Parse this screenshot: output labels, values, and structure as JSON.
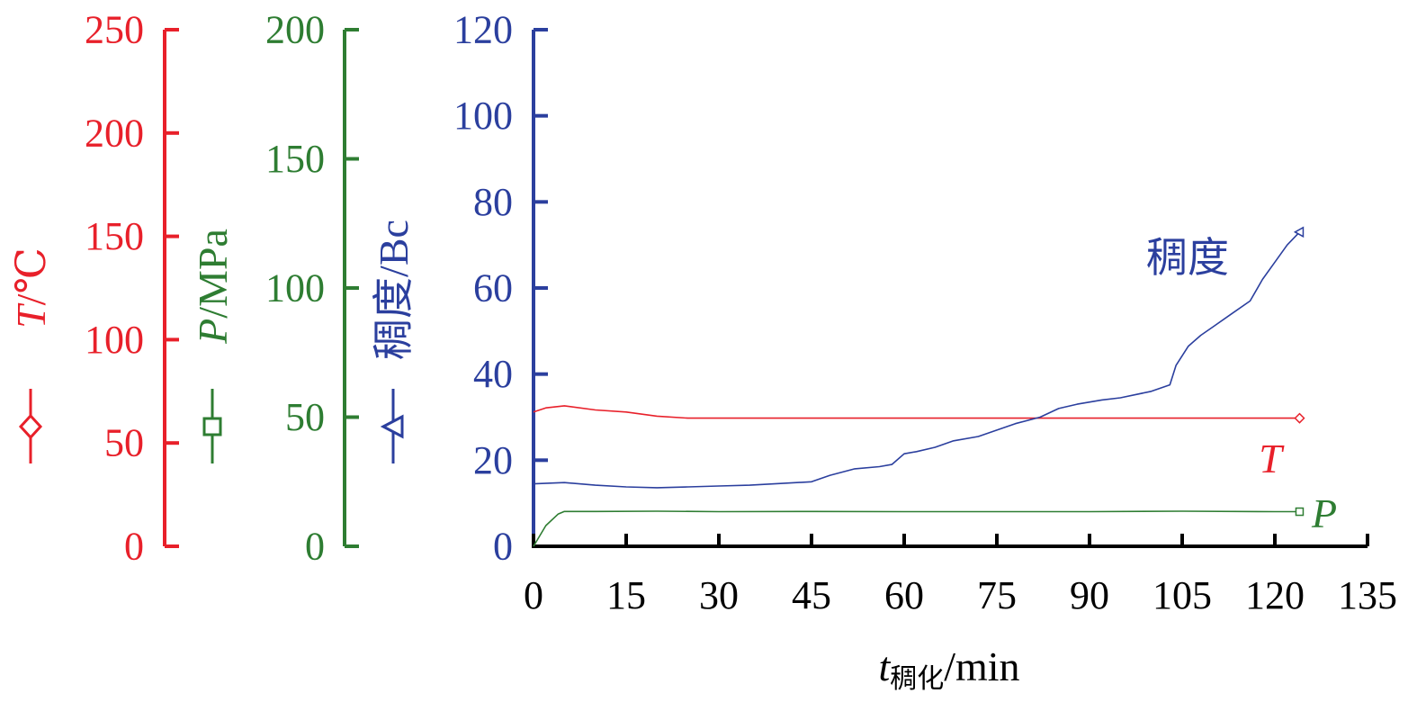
{
  "chart_data": {
    "type": "line",
    "x_axis": {
      "label": "t",
      "label_sub": "稠化",
      "label_unit": "/min",
      "range": [
        0,
        135
      ],
      "ticks": [
        "0",
        "15",
        "30",
        "45",
        "60",
        "75",
        "90",
        "105",
        "120",
        "135"
      ]
    },
    "y_axes": [
      {
        "id": "T",
        "label_var": "T",
        "label_unit": "/℃",
        "range": [
          0,
          250
        ],
        "ticks": [
          "0",
          "50",
          "100",
          "150",
          "200",
          "250"
        ],
        "color": "#e8202a",
        "marker": "diamond"
      },
      {
        "id": "P",
        "label_var": "P",
        "label_unit": "/MPa",
        "range": [
          0,
          200
        ],
        "ticks": [
          "0",
          "50",
          "100",
          "150",
          "200"
        ],
        "color": "#2e7d32",
        "marker": "square"
      },
      {
        "id": "C",
        "label_var": "稠度",
        "label_unit": "/Bc",
        "range": [
          0,
          120
        ],
        "ticks": [
          "0",
          "20",
          "40",
          "60",
          "80",
          "100",
          "120"
        ],
        "color": "#2b3f9e",
        "marker": "triangle"
      }
    ],
    "series": [
      {
        "name": "T",
        "axis": "T",
        "color": "#e8202a",
        "points": [
          [
            0,
            65
          ],
          [
            2,
            67
          ],
          [
            5,
            68
          ],
          [
            10,
            66
          ],
          [
            15,
            65
          ],
          [
            20,
            63
          ],
          [
            25,
            62
          ],
          [
            30,
            62
          ],
          [
            45,
            62
          ],
          [
            60,
            62
          ],
          [
            75,
            62
          ],
          [
            90,
            62
          ],
          [
            105,
            62
          ],
          [
            120,
            62
          ],
          [
            124,
            62
          ]
        ]
      },
      {
        "name": "P",
        "axis": "P",
        "color": "#2e7d32",
        "points": [
          [
            0,
            0
          ],
          [
            2,
            8
          ],
          [
            4,
            12.5
          ],
          [
            5,
            13.5
          ],
          [
            10,
            13.5
          ],
          [
            20,
            13.6
          ],
          [
            30,
            13.4
          ],
          [
            45,
            13.5
          ],
          [
            60,
            13.4
          ],
          [
            75,
            13.4
          ],
          [
            90,
            13.4
          ],
          [
            105,
            13.6
          ],
          [
            120,
            13.4
          ],
          [
            124,
            13.4
          ]
        ]
      },
      {
        "name": "稠度",
        "axis": "C",
        "color": "#2b3f9e",
        "points": [
          [
            0,
            14.5
          ],
          [
            5,
            14.8
          ],
          [
            10,
            14.2
          ],
          [
            15,
            13.8
          ],
          [
            20,
            13.6
          ],
          [
            25,
            13.8
          ],
          [
            30,
            14
          ],
          [
            35,
            14.2
          ],
          [
            40,
            14.6
          ],
          [
            45,
            15
          ],
          [
            48,
            16.5
          ],
          [
            52,
            18
          ],
          [
            56,
            18.5
          ],
          [
            58,
            19
          ],
          [
            60,
            21.5
          ],
          [
            62,
            22
          ],
          [
            65,
            23
          ],
          [
            68,
            24.5
          ],
          [
            72,
            25.5
          ],
          [
            75,
            27
          ],
          [
            78,
            28.5
          ],
          [
            82,
            30
          ],
          [
            85,
            32
          ],
          [
            88,
            33
          ],
          [
            92,
            34
          ],
          [
            95,
            34.5
          ],
          [
            100,
            36
          ],
          [
            103,
            37.5
          ],
          [
            104,
            42
          ],
          [
            106,
            46.5
          ],
          [
            108,
            49
          ],
          [
            110,
            51
          ],
          [
            113,
            54
          ],
          [
            116,
            57
          ],
          [
            118,
            62
          ],
          [
            120,
            66
          ],
          [
            122,
            70
          ],
          [
            124,
            73
          ]
        ]
      }
    ],
    "annotations": [
      {
        "text": "稠度",
        "series": "稠度"
      },
      {
        "text": "T",
        "series": "T"
      },
      {
        "text": "P",
        "series": "P"
      }
    ],
    "grid": false,
    "legend": "left"
  }
}
